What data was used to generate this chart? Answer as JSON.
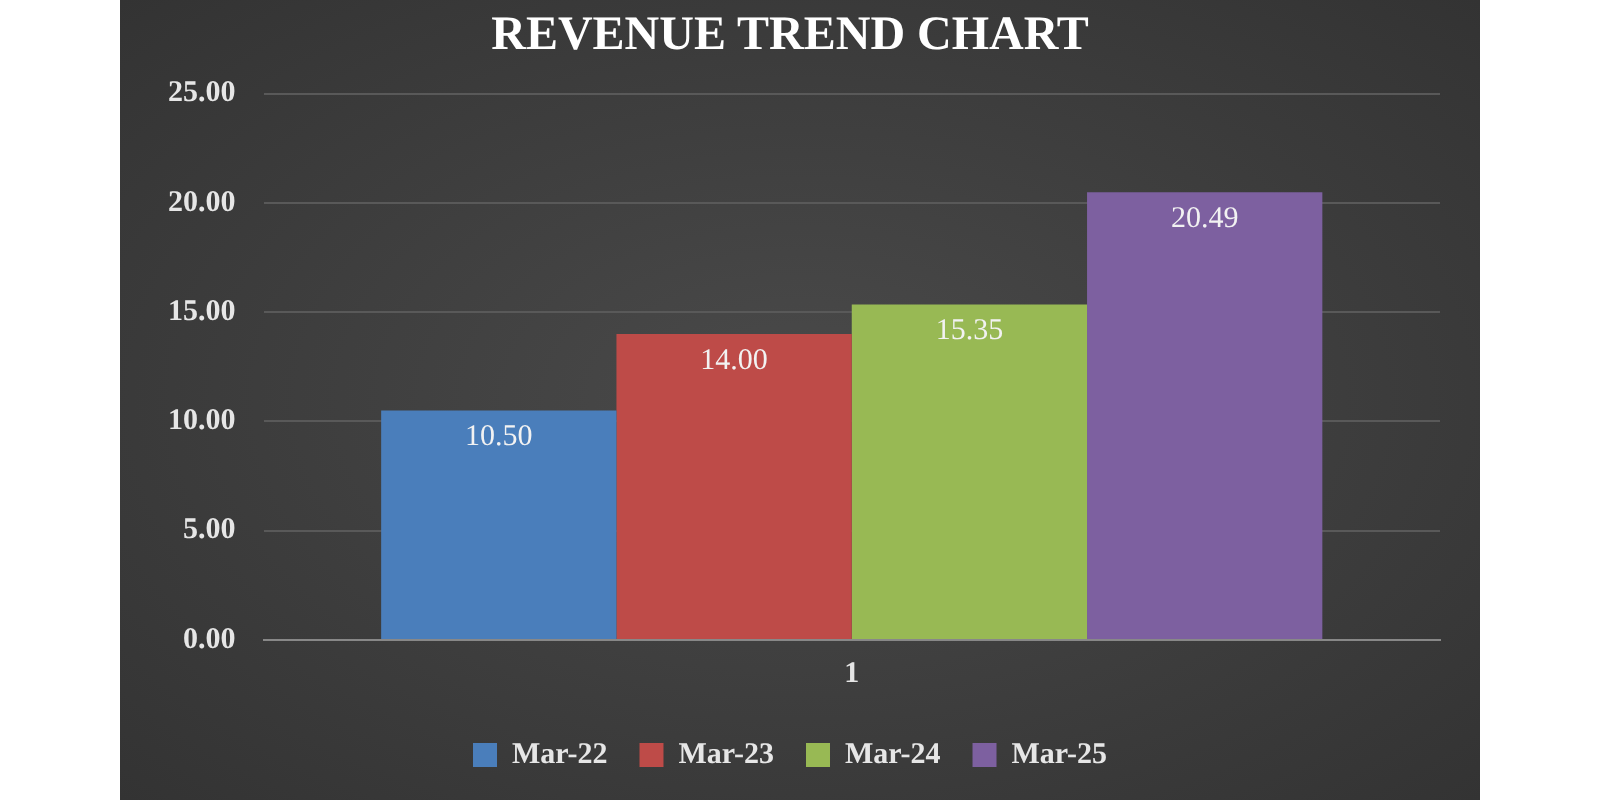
{
  "chart_data": {
    "type": "bar",
    "title": "REVENUE TREND CHART",
    "categories": [
      "1"
    ],
    "series": [
      {
        "name": "Mar-22",
        "color": "#4a7ebb",
        "values": [
          10.5
        ],
        "value_labels": [
          "10.50"
        ]
      },
      {
        "name": "Mar-23",
        "color": "#be4b48",
        "values": [
          14
        ],
        "value_labels": [
          "14.00"
        ]
      },
      {
        "name": "Mar-24",
        "color": "#98b954",
        "values": [
          15.35
        ],
        "value_labels": [
          "15.35"
        ]
      },
      {
        "name": "Mar-25",
        "color": "#7d60a0",
        "values": [
          20.49
        ],
        "value_labels": [
          "20.49"
        ]
      }
    ],
    "ylim": [
      0,
      25
    ],
    "yticks": [
      {
        "value": 0,
        "label": "0.00"
      },
      {
        "value": 5,
        "label": "5.00"
      },
      {
        "value": 10,
        "label": "10.00"
      },
      {
        "value": 15,
        "label": "15.00"
      },
      {
        "value": 20,
        "label": "20.00"
      },
      {
        "value": 25,
        "label": "25.00"
      }
    ],
    "grid": "y",
    "legend": "bottom"
  }
}
